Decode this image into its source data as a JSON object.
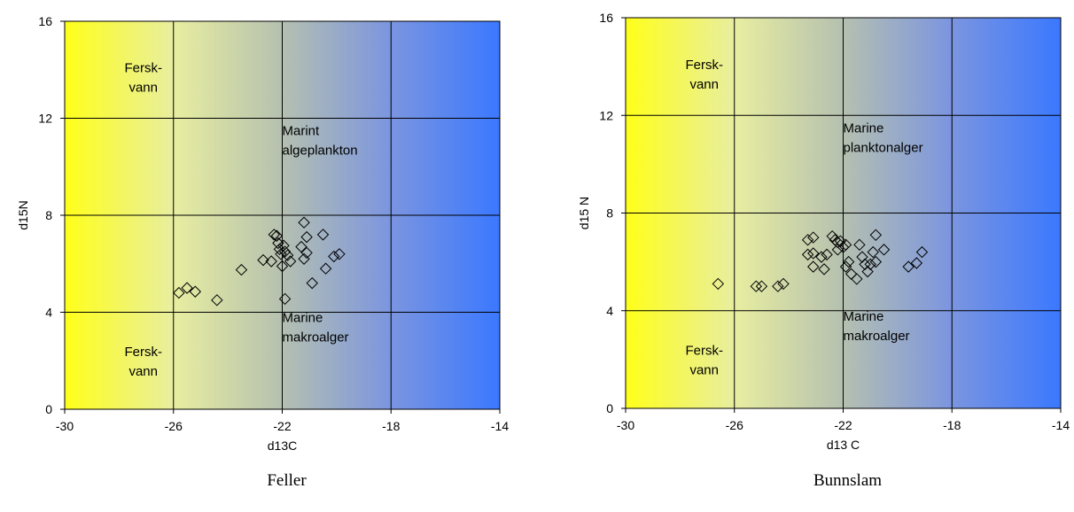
{
  "charts": [
    {
      "caption": "Feller",
      "chart_data": {
        "type": "scatter",
        "title": "",
        "xlabel": "d13C",
        "ylabel": "d15N",
        "xlim": [
          -30,
          -14
        ],
        "ylim": [
          0,
          16
        ],
        "xticks": [
          -30,
          -26,
          -22,
          -18,
          -14
        ],
        "yticks": [
          0,
          4,
          8,
          12,
          16
        ],
        "grid": true,
        "marker": "diamond-open",
        "background_gradient": [
          "#ffff1a",
          "#e8eea0",
          "#b5c0b0",
          "#7b95e0",
          "#3a78ff"
        ],
        "annotations": [
          {
            "lines": [
              "Fersk-",
              "vann"
            ],
            "x": -27.5,
            "y": 13.9
          },
          {
            "lines": [
              "Marint",
              "algeplankton"
            ],
            "x": -22.0,
            "y": 11.3
          },
          {
            "lines": [
              "Marine",
              "makroalger"
            ],
            "x": -22.0,
            "y": 3.6
          },
          {
            "lines": [
              "Fersk-",
              "vann"
            ],
            "x": -27.5,
            "y": 2.2
          }
        ],
        "points": [
          {
            "x": -25.8,
            "y": 4.8
          },
          {
            "x": -25.5,
            "y": 5.0
          },
          {
            "x": -25.2,
            "y": 4.85
          },
          {
            "x": -24.4,
            "y": 4.5
          },
          {
            "x": -23.5,
            "y": 5.75
          },
          {
            "x": -22.7,
            "y": 6.15
          },
          {
            "x": -22.4,
            "y": 6.1
          },
          {
            "x": -22.3,
            "y": 7.2
          },
          {
            "x": -22.2,
            "y": 7.15
          },
          {
            "x": -22.15,
            "y": 6.85
          },
          {
            "x": -22.1,
            "y": 6.6
          },
          {
            "x": -22.05,
            "y": 6.4
          },
          {
            "x": -22.0,
            "y": 5.9
          },
          {
            "x": -21.95,
            "y": 6.75
          },
          {
            "x": -21.9,
            "y": 6.5
          },
          {
            "x": -21.8,
            "y": 6.35
          },
          {
            "x": -21.7,
            "y": 6.1
          },
          {
            "x": -21.9,
            "y": 4.55
          },
          {
            "x": -21.3,
            "y": 6.7
          },
          {
            "x": -21.2,
            "y": 7.7
          },
          {
            "x": -21.1,
            "y": 7.1
          },
          {
            "x": -21.2,
            "y": 6.2
          },
          {
            "x": -21.1,
            "y": 6.45
          },
          {
            "x": -20.9,
            "y": 5.2
          },
          {
            "x": -20.5,
            "y": 7.2
          },
          {
            "x": -20.4,
            "y": 5.8
          },
          {
            "x": -20.1,
            "y": 6.3
          },
          {
            "x": -19.9,
            "y": 6.4
          }
        ]
      }
    },
    {
      "caption": "Bunnslam",
      "chart_data": {
        "type": "scatter",
        "title": "",
        "xlabel": "d13 C",
        "ylabel": "d15 N",
        "xlim": [
          -30,
          -14
        ],
        "ylim": [
          0,
          16
        ],
        "xticks": [
          -30,
          -26,
          -22,
          -18,
          -14
        ],
        "yticks": [
          0,
          4,
          8,
          12,
          16
        ],
        "grid": true,
        "marker": "diamond-open",
        "background_gradient": [
          "#ffff1a",
          "#e8eea0",
          "#b5c0b0",
          "#7b95e0",
          "#3a78ff"
        ],
        "annotations": [
          {
            "lines": [
              "Fersk-",
              "vann"
            ],
            "x": -27.5,
            "y": 13.9
          },
          {
            "lines": [
              "Marine",
              "planktonalger"
            ],
            "x": -22.0,
            "y": 11.3
          },
          {
            "lines": [
              "Marine",
              "makroalger"
            ],
            "x": -22.0,
            "y": 3.6
          },
          {
            "lines": [
              "Fersk-",
              "vann"
            ],
            "x": -27.5,
            "y": 2.2
          }
        ],
        "points": [
          {
            "x": -26.6,
            "y": 5.1
          },
          {
            "x": -25.2,
            "y": 5.0
          },
          {
            "x": -25.0,
            "y": 5.0
          },
          {
            "x": -24.4,
            "y": 5.0
          },
          {
            "x": -24.2,
            "y": 5.1
          },
          {
            "x": -23.3,
            "y": 6.9
          },
          {
            "x": -23.1,
            "y": 7.0
          },
          {
            "x": -23.3,
            "y": 6.3
          },
          {
            "x": -23.1,
            "y": 6.35
          },
          {
            "x": -23.1,
            "y": 5.8
          },
          {
            "x": -22.8,
            "y": 6.2
          },
          {
            "x": -22.6,
            "y": 6.3
          },
          {
            "x": -22.7,
            "y": 5.7
          },
          {
            "x": -22.4,
            "y": 7.05
          },
          {
            "x": -22.3,
            "y": 6.9
          },
          {
            "x": -22.2,
            "y": 6.8
          },
          {
            "x": -22.1,
            "y": 6.85
          },
          {
            "x": -22.0,
            "y": 6.6
          },
          {
            "x": -22.2,
            "y": 6.5
          },
          {
            "x": -21.9,
            "y": 6.7
          },
          {
            "x": -21.9,
            "y": 5.8
          },
          {
            "x": -21.8,
            "y": 6.0
          },
          {
            "x": -21.7,
            "y": 5.5
          },
          {
            "x": -21.5,
            "y": 5.3
          },
          {
            "x": -21.4,
            "y": 6.7
          },
          {
            "x": -21.3,
            "y": 6.2
          },
          {
            "x": -21.2,
            "y": 5.9
          },
          {
            "x": -21.1,
            "y": 5.6
          },
          {
            "x": -21.0,
            "y": 5.9
          },
          {
            "x": -20.9,
            "y": 6.4
          },
          {
            "x": -20.8,
            "y": 6.0
          },
          {
            "x": -20.8,
            "y": 7.1
          },
          {
            "x": -20.5,
            "y": 6.5
          },
          {
            "x": -19.6,
            "y": 5.8
          },
          {
            "x": -19.3,
            "y": 5.95
          },
          {
            "x": -19.1,
            "y": 6.4
          }
        ]
      }
    }
  ]
}
